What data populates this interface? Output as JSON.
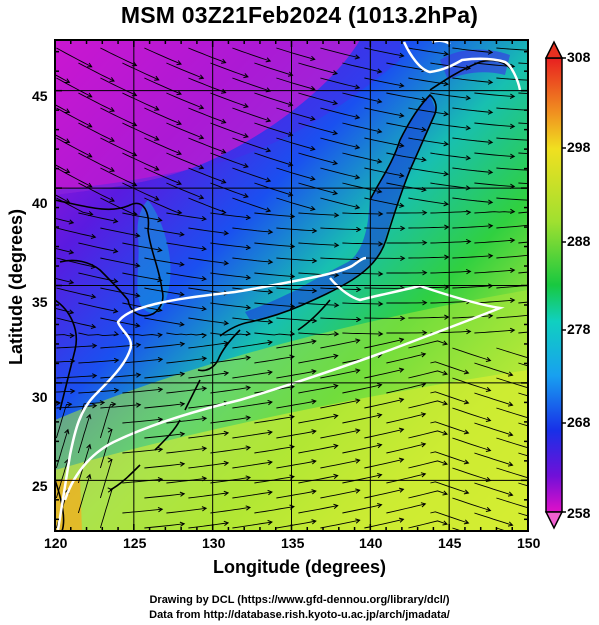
{
  "title": "MSM 03Z21Feb2024 (1013.2hPa)",
  "xlabel": "Longitude (degrees)",
  "ylabel": "Latitude  (degrees)",
  "credit_line1": "Drawing by DCL (https://www.gfd-dennou.org/library/dcl/)",
  "credit_line2": "Data from http://database.rish.kyoto-u.ac.jp/arch/jmadata/",
  "x_ticks": [
    "120",
    "125",
    "130",
    "135",
    "140",
    "145",
    "150"
  ],
  "y_ticks": [
    "45",
    "40",
    "35",
    "30",
    "25"
  ],
  "colorbar_ticks": [
    "308",
    "298",
    "288",
    "278",
    "268",
    "258"
  ],
  "chart_data": {
    "type": "heatmap",
    "field": "temperature with wind streamlines",
    "xlim": [
      120,
      150
    ],
    "ylim": [
      22.4,
      47.6
    ],
    "color_range": [
      258,
      308
    ],
    "colormap": [
      "#d400d4",
      "#6a00e0",
      "#1a3cf0",
      "#10c8e8",
      "#18c830",
      "#e8f020",
      "#f08020",
      "#e02020"
    ],
    "grid": true,
    "white_contour": true
  }
}
